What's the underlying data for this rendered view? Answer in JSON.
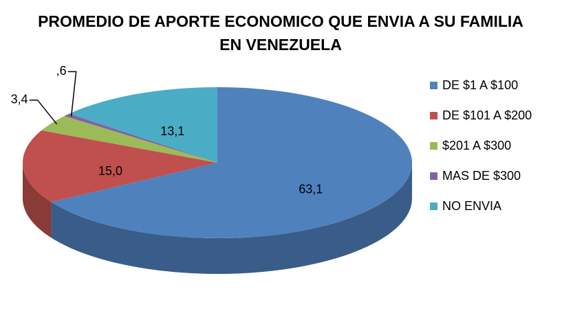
{
  "chart_data": {
    "type": "pie3d",
    "title": "PROMEDIO DE APORTE ECONOMICO QUE ENVIA A SU FAMILIA EN VENEZUELA",
    "categories": [
      "DE $1 A $100",
      "DE $101 A $200",
      "$201 A $300",
      "MAS DE $300",
      "NO ENVIA"
    ],
    "values": [
      63.1,
      15.0,
      3.4,
      0.6,
      13.1
    ],
    "value_labels": [
      "63,1",
      "15,0",
      "3,4",
      ",6",
      "13,1"
    ],
    "colors": [
      "#4f81bd",
      "#c0504d",
      "#9bbb59",
      "#8064a2",
      "#4bacc6"
    ],
    "legend": "right"
  }
}
